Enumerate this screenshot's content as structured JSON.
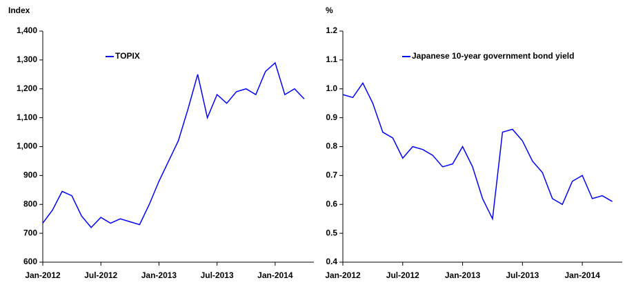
{
  "chart_data": [
    {
      "type": "line",
      "y_label": "Index",
      "x": [
        "2012-01",
        "2012-02",
        "2012-03",
        "2012-04",
        "2012-05",
        "2012-06",
        "2012-07",
        "2012-08",
        "2012-09",
        "2012-10",
        "2012-11",
        "2012-12",
        "2013-01",
        "2013-02",
        "2013-03",
        "2013-04",
        "2013-05",
        "2013-06",
        "2013-07",
        "2013-08",
        "2013-09",
        "2013-10",
        "2013-11",
        "2013-12",
        "2014-01",
        "2014-02",
        "2014-03",
        "2014-04"
      ],
      "series": [
        {
          "name": "TOPIX",
          "color": "#0000ff",
          "values": [
            735,
            780,
            845,
            830,
            760,
            720,
            755,
            735,
            750,
            740,
            730,
            800,
            880,
            950,
            1020,
            1130,
            1250,
            1100,
            1180,
            1150,
            1190,
            1200,
            1180,
            1260,
            1290,
            1180,
            1200,
            1165
          ]
        }
      ],
      "xlim": [
        "2012-01",
        "2014-05"
      ],
      "xticks": [
        {
          "value": "2012-01",
          "label": "Jan-2012"
        },
        {
          "value": "2012-07",
          "label": "Jul-2012"
        },
        {
          "value": "2013-01",
          "label": "Jan-2013"
        },
        {
          "value": "2013-07",
          "label": "Jul-2013"
        },
        {
          "value": "2014-01",
          "label": "Jan-2014"
        }
      ],
      "ylim": [
        600,
        1400
      ],
      "yticks": [
        600,
        700,
        800,
        900,
        {
          "value": 1000,
          "label": "1,000"
        },
        {
          "value": 1100,
          "label": "1,100"
        },
        {
          "value": 1200,
          "label": "1,200"
        },
        {
          "value": 1300,
          "label": "1,300"
        },
        {
          "value": 1400,
          "label": "1,400"
        }
      ]
    },
    {
      "type": "line",
      "y_label": "%",
      "x": [
        "2012-01",
        "2012-02",
        "2012-03",
        "2012-04",
        "2012-05",
        "2012-06",
        "2012-07",
        "2012-08",
        "2012-09",
        "2012-10",
        "2012-11",
        "2012-12",
        "2013-01",
        "2013-02",
        "2013-03",
        "2013-04",
        "2013-05",
        "2013-06",
        "2013-07",
        "2013-08",
        "2013-09",
        "2013-10",
        "2013-11",
        "2013-12",
        "2014-01",
        "2014-02",
        "2014-03",
        "2014-04"
      ],
      "series": [
        {
          "name": "Japanese 10-year government bond yield",
          "color": "#0000ff",
          "values": [
            0.98,
            0.97,
            1.02,
            0.95,
            0.85,
            0.83,
            0.76,
            0.8,
            0.79,
            0.77,
            0.73,
            0.74,
            0.8,
            0.73,
            0.62,
            0.55,
            0.85,
            0.86,
            0.82,
            0.75,
            0.71,
            0.62,
            0.6,
            0.68,
            0.7,
            0.62,
            0.63,
            0.61
          ]
        }
      ],
      "xlim": [
        "2012-01",
        "2014-05"
      ],
      "xticks": [
        {
          "value": "2012-01",
          "label": "Jan-2012"
        },
        {
          "value": "2012-07",
          "label": "Jul-2012"
        },
        {
          "value": "2013-01",
          "label": "Jan-2013"
        },
        {
          "value": "2013-07",
          "label": "Jul-2013"
        },
        {
          "value": "2014-01",
          "label": "Jan-2014"
        }
      ],
      "ylim": [
        0.4,
        1.2
      ],
      "yticks": [
        0.4,
        0.5,
        0.6,
        0.7,
        0.8,
        0.9,
        {
          "value": 1,
          "label": "1.0"
        },
        1.1,
        1.2
      ]
    }
  ]
}
